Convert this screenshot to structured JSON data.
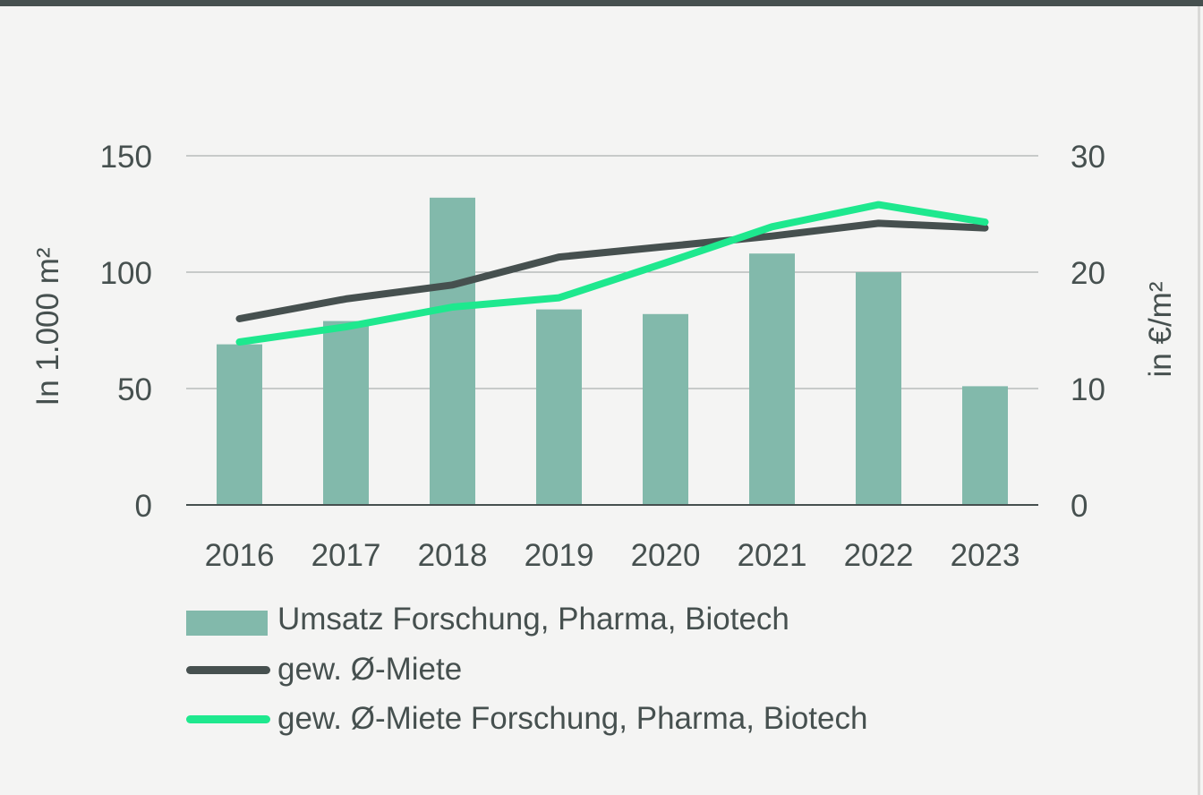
{
  "chart_data": {
    "type": "bar",
    "categories": [
      "2016",
      "2017",
      "2018",
      "2019",
      "2020",
      "2021",
      "2022",
      "2023"
    ],
    "bars": {
      "name": "Umsatz Forschung, Pharma, Biotech",
      "values": [
        69,
        79,
        132,
        84,
        82,
        108,
        100,
        51
      ],
      "axis": "left",
      "color": "#82b9ab"
    },
    "series": [
      {
        "name": "gew. Ø-Miete",
        "type": "line",
        "axis": "right",
        "values": [
          16.0,
          17.7,
          18.9,
          21.3,
          22.2,
          23.1,
          24.2,
          23.8
        ],
        "color": "#46504f"
      },
      {
        "name": "gew. Ø-Miete Forschung, Pharma, Biotech",
        "type": "line",
        "axis": "right",
        "values": [
          14.0,
          15.3,
          17.0,
          17.8,
          20.8,
          23.9,
          25.8,
          24.3
        ],
        "color": "#1ee88e"
      }
    ],
    "yaxis_left": {
      "label": "In 1.000 m²",
      "ticks": [
        "0",
        "50",
        "100",
        "150"
      ],
      "ylim": [
        0,
        150
      ]
    },
    "yaxis_right": {
      "label": "in €/m²",
      "ticks": [
        "0",
        "10",
        "20",
        "30"
      ],
      "ylim": [
        0,
        30
      ]
    },
    "grid": true,
    "legend_position": "bottom"
  }
}
